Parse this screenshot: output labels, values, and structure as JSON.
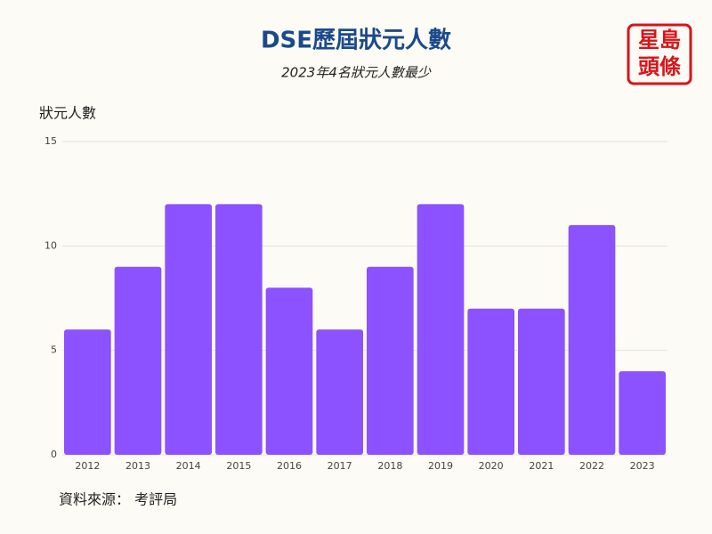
{
  "chart_data": {
    "type": "bar",
    "title": "DSE歷屆狀元人數",
    "subtitle": "2023年4名狀元人數最少",
    "y_label": "狀元人數",
    "source": "資料來源： 考評局",
    "logo": [
      "星島",
      "頭條"
    ],
    "categories": [
      "2012",
      "2013",
      "2014",
      "2015",
      "2016",
      "2017",
      "2018",
      "2019",
      "2020",
      "2021",
      "2022",
      "2023"
    ],
    "values": [
      6,
      9,
      12,
      12,
      8,
      6,
      9,
      12,
      7,
      7,
      11,
      4
    ],
    "color": "#8c52ff",
    "ylim": [
      0,
      15
    ],
    "yticks": [
      0,
      5,
      10,
      15
    ],
    "grid": true
  }
}
